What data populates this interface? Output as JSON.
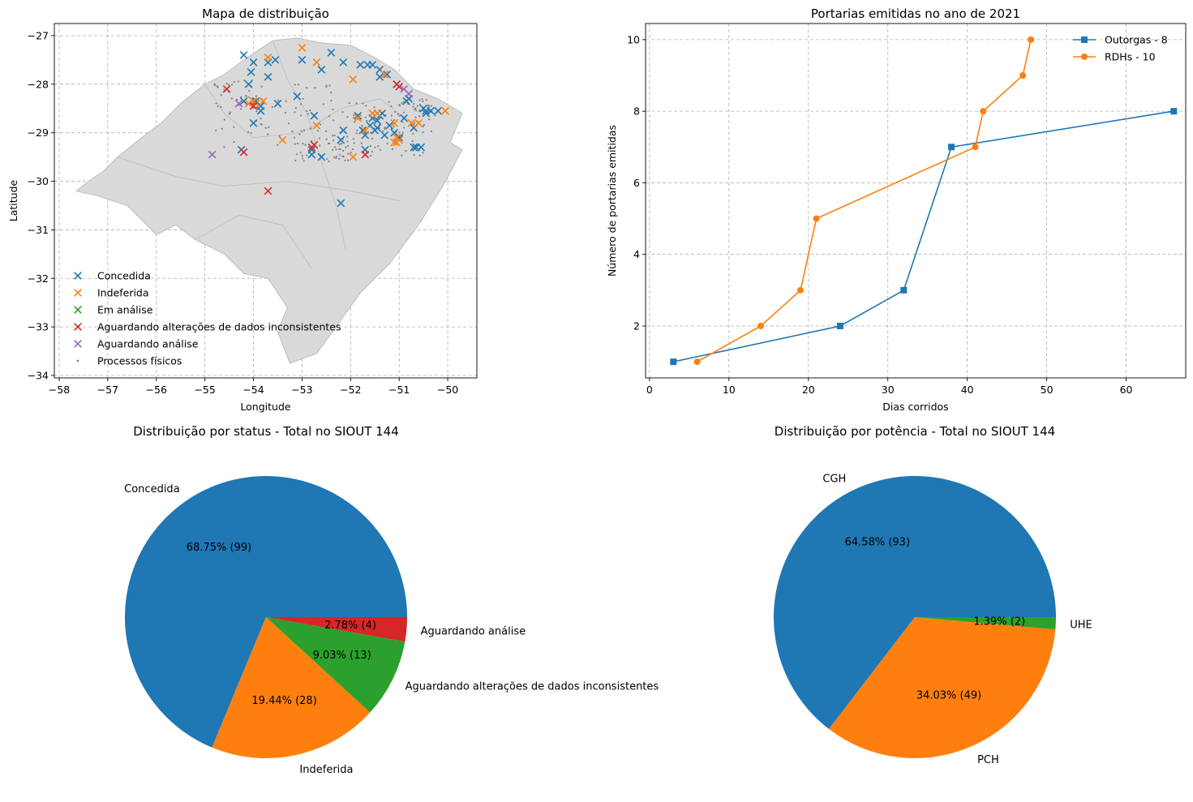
{
  "colors": {
    "blue": "#1f77b4",
    "orange": "#ff7f0e",
    "green": "#2ca02c",
    "red": "#d62728",
    "purple": "#9467bd",
    "gray": "#808080",
    "map_fill": "#d9d9d9"
  },
  "chart_data": [
    {
      "type": "scatter",
      "title": "Mapa de distribuição",
      "xlabel": "Longitude",
      "ylabel": "Latitude",
      "xlim": [
        -58.1,
        -49.4
      ],
      "ylim": [
        -34.05,
        -26.75
      ],
      "xticks": [
        "−58",
        "−57",
        "−56",
        "−55",
        "−54",
        "−53",
        "−52",
        "−51",
        "−50"
      ],
      "yticks": [
        "−27",
        "−28",
        "−29",
        "−30",
        "−31",
        "−32",
        "−33",
        "−34"
      ],
      "grid": true,
      "legend_position": "bottom-left",
      "region_outline": [
        [
          -57.65,
          -30.2
        ],
        [
          -57.4,
          -30.0
        ],
        [
          -57.1,
          -29.8
        ],
        [
          -56.8,
          -29.5
        ],
        [
          -56.3,
          -29.1
        ],
        [
          -55.9,
          -28.8
        ],
        [
          -55.5,
          -28.4
        ],
        [
          -55.0,
          -28.0
        ],
        [
          -54.6,
          -27.8
        ],
        [
          -54.2,
          -27.5
        ],
        [
          -53.9,
          -27.3
        ],
        [
          -53.6,
          -27.1
        ],
        [
          -53.1,
          -27.05
        ],
        [
          -52.6,
          -27.15
        ],
        [
          -52.0,
          -27.2
        ],
        [
          -51.5,
          -27.45
        ],
        [
          -51.1,
          -27.7
        ],
        [
          -50.7,
          -28.1
        ],
        [
          -50.2,
          -28.3
        ],
        [
          -49.7,
          -28.6
        ],
        [
          -49.95,
          -29.2
        ],
        [
          -49.7,
          -29.35
        ],
        [
          -50.1,
          -30.1
        ],
        [
          -50.6,
          -30.9
        ],
        [
          -51.2,
          -31.7
        ],
        [
          -51.8,
          -32.3
        ],
        [
          -52.3,
          -33.0
        ],
        [
          -52.7,
          -33.55
        ],
        [
          -53.25,
          -33.75
        ],
        [
          -53.5,
          -33.1
        ],
        [
          -53.3,
          -32.6
        ],
        [
          -53.7,
          -32.0
        ],
        [
          -54.2,
          -31.9
        ],
        [
          -54.6,
          -31.5
        ],
        [
          -55.2,
          -31.2
        ],
        [
          -55.6,
          -30.9
        ],
        [
          -56.0,
          -31.1
        ],
        [
          -56.6,
          -30.5
        ],
        [
          -57.2,
          -30.3
        ]
      ],
      "series": [
        {
          "name": "Concedida",
          "marker": "x",
          "color": "#1f77b4",
          "points": [
            [
              -54.2,
              -27.4
            ],
            [
              -54.0,
              -27.55
            ],
            [
              -53.7,
              -27.55
            ],
            [
              -53.55,
              -27.5
            ],
            [
              -53.0,
              -27.5
            ],
            [
              -52.4,
              -27.35
            ],
            [
              -51.8,
              -27.6
            ],
            [
              -51.65,
              -27.6
            ],
            [
              -51.55,
              -27.6
            ],
            [
              -51.4,
              -27.7
            ],
            [
              -51.4,
              -27.85
            ],
            [
              -54.05,
              -27.75
            ],
            [
              -54.1,
              -28.0
            ],
            [
              -53.7,
              -27.85
            ],
            [
              -52.6,
              -27.7
            ],
            [
              -52.15,
              -27.55
            ],
            [
              -51.25,
              -27.8
            ],
            [
              -51.05,
              -28.0
            ],
            [
              -50.8,
              -28.3
            ],
            [
              -50.85,
              -28.35
            ],
            [
              -50.5,
              -28.5
            ],
            [
              -50.45,
              -28.55
            ],
            [
              -50.35,
              -28.55
            ],
            [
              -50.2,
              -28.55
            ],
            [
              -50.45,
              -28.6
            ],
            [
              -53.95,
              -28.35
            ],
            [
              -53.85,
              -28.45
            ],
            [
              -53.85,
              -28.55
            ],
            [
              -53.5,
              -28.4
            ],
            [
              -53.1,
              -28.25
            ],
            [
              -52.75,
              -28.65
            ],
            [
              -52.6,
              -29.5
            ],
            [
              -51.85,
              -28.65
            ],
            [
              -51.55,
              -28.7
            ],
            [
              -51.4,
              -28.65
            ],
            [
              -51.35,
              -28.6
            ],
            [
              -51.45,
              -28.75
            ],
            [
              -51.6,
              -28.85
            ],
            [
              -51.75,
              -28.95
            ],
            [
              -52.15,
              -28.95
            ],
            [
              -51.2,
              -28.85
            ],
            [
              -51.1,
              -29.0
            ],
            [
              -51.0,
              -29.1
            ],
            [
              -50.9,
              -28.7
            ],
            [
              -50.7,
              -28.9
            ],
            [
              -50.65,
              -29.3
            ],
            [
              -50.55,
              -29.3
            ],
            [
              -50.7,
              -29.3
            ],
            [
              -51.7,
              -29.35
            ],
            [
              -54.2,
              -28.35
            ],
            [
              -54.0,
              -28.8
            ],
            [
              -52.8,
              -29.35
            ],
            [
              -52.8,
              -29.45
            ],
            [
              -54.25,
              -29.35
            ],
            [
              -52.2,
              -29.15
            ],
            [
              -52.2,
              -30.45
            ],
            [
              -51.7,
              -29.05
            ],
            [
              -51.45,
              -28.9
            ],
            [
              -51.5,
              -28.95
            ],
            [
              -51.3,
              -29.05
            ]
          ]
        },
        {
          "name": "Indeferida",
          "marker": "x",
          "color": "#ff7f0e",
          "points": [
            [
              -53.7,
              -27.45
            ],
            [
              -53.0,
              -27.25
            ],
            [
              -52.7,
              -27.55
            ],
            [
              -51.95,
              -27.9
            ],
            [
              -51.3,
              -27.8
            ],
            [
              -51.55,
              -28.6
            ],
            [
              -51.45,
              -28.6
            ],
            [
              -54.1,
              -28.4
            ],
            [
              -54.0,
              -28.35
            ],
            [
              -53.95,
              -28.4
            ],
            [
              -53.8,
              -28.35
            ],
            [
              -52.7,
              -28.85
            ],
            [
              -51.85,
              -28.7
            ],
            [
              -51.7,
              -28.95
            ],
            [
              -51.1,
              -28.8
            ],
            [
              -51.05,
              -29.1
            ],
            [
              -51.0,
              -29.15
            ],
            [
              -51.1,
              -29.2
            ],
            [
              -51.05,
              -29.2
            ],
            [
              -50.75,
              -28.8
            ],
            [
              -50.6,
              -28.8
            ],
            [
              -50.05,
              -28.55
            ],
            [
              -51.95,
              -29.5
            ],
            [
              -53.4,
              -29.15
            ]
          ]
        },
        {
          "name": "Em análise",
          "marker": "x",
          "color": "#2ca02c",
          "points": []
        },
        {
          "name": "Aguardando alterações de dados inconsistentes",
          "marker": "x",
          "color": "#d62728",
          "points": [
            [
              -54.55,
              -28.1
            ],
            [
              -51.05,
              -28.0
            ],
            [
              -51.0,
              -28.05
            ],
            [
              -54.2,
              -29.4
            ],
            [
              -53.7,
              -30.2
            ],
            [
              -52.75,
              -29.25
            ],
            [
              -52.8,
              -29.3
            ],
            [
              -51.7,
              -29.45
            ],
            [
              -54.0,
              -28.45
            ]
          ]
        },
        {
          "name": "Aguardando análise",
          "marker": "x",
          "color": "#9467bd",
          "points": [
            [
              -54.3,
              -28.4
            ],
            [
              -54.85,
              -29.45
            ],
            [
              -50.9,
              -28.1
            ],
            [
              -50.8,
              -28.2
            ]
          ]
        },
        {
          "name": "Processos físicos",
          "marker": "dot",
          "color": "#808080",
          "points": []
        }
      ]
    },
    {
      "type": "line",
      "title": "Portarias emitidas no ano de 2021",
      "xlabel": "Dias corridos",
      "ylabel": "Número de portarias emitidas",
      "xlim": [
        -0.5,
        67.5
      ],
      "ylim": [
        0.55,
        10.45
      ],
      "xticks": [
        0,
        10,
        20,
        30,
        40,
        50,
        60
      ],
      "yticks": [
        2,
        4,
        6,
        8,
        10
      ],
      "grid": true,
      "legend_position": "top-right",
      "series": [
        {
          "name": "Outorgas - 8",
          "marker": "square",
          "color": "#1f77b4",
          "x": [
            3,
            24,
            32,
            38,
            66
          ],
          "y": [
            1,
            2,
            3,
            7,
            8
          ]
        },
        {
          "name": "RDHs - 10",
          "marker": "circle",
          "color": "#ff7f0e",
          "x": [
            6,
            14,
            19,
            21,
            41,
            42,
            47,
            48
          ],
          "y": [
            1,
            2,
            3,
            5,
            7,
            8,
            9,
            10
          ]
        }
      ]
    },
    {
      "type": "pie",
      "title": "Distribuição por status - Total no SIOUT 144",
      "total": 144,
      "slices": [
        {
          "label": "Concedida",
          "value": 99,
          "pct_text": "68.75%  (99)",
          "color": "#1f77b4"
        },
        {
          "label": "Indeferida",
          "value": 28,
          "pct_text": "19.44%  (28)",
          "color": "#ff7f0e"
        },
        {
          "label": "Aguardando alterações de dados inconsistentes",
          "value": 13,
          "pct_text": "9.03%  (13)",
          "color": "#2ca02c"
        },
        {
          "label": "Aguardando análise",
          "value": 4,
          "pct_text": "2.78%  (4)",
          "color": "#d62728"
        }
      ]
    },
    {
      "type": "pie",
      "title": "Distribuição por potência - Total no SIOUT 144",
      "total": 144,
      "slices": [
        {
          "label": "CGH",
          "value": 93,
          "pct_text": "64.58%  (93)",
          "color": "#1f77b4"
        },
        {
          "label": "PCH",
          "value": 49,
          "pct_text": "34.03%  (49)",
          "color": "#ff7f0e"
        },
        {
          "label": "UHE",
          "value": 2,
          "pct_text": "1.39%  (2)",
          "color": "#2ca02c"
        }
      ]
    }
  ]
}
